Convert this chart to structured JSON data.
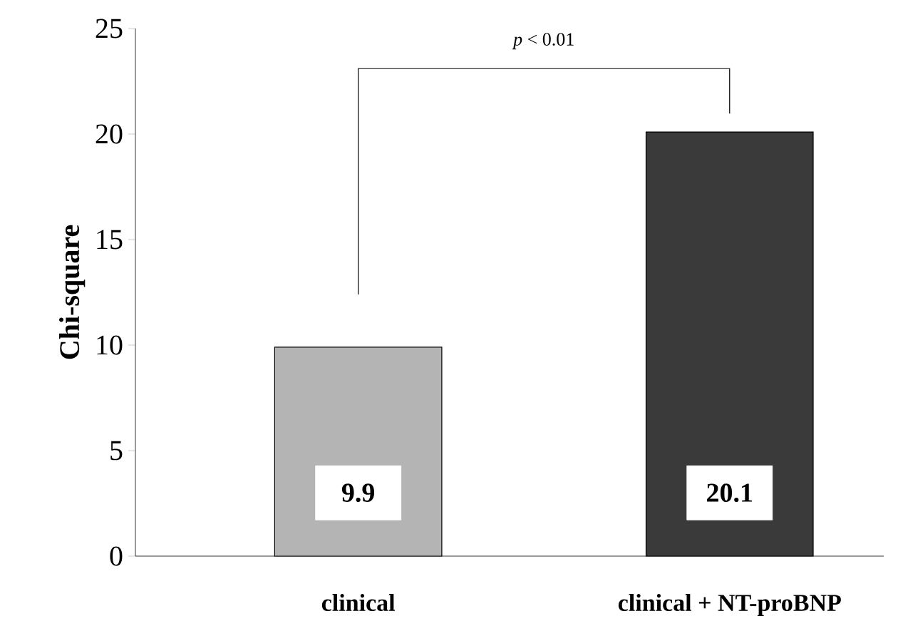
{
  "chart_data": {
    "type": "bar",
    "ylabel": "Chi-square",
    "categories": [
      "clinical",
      "clinical + NT-proBNP"
    ],
    "values": [
      9.9,
      20.1
    ],
    "colors": [
      "#b4b4b4",
      "#3a3a3a"
    ],
    "ylim": [
      0,
      25
    ],
    "yticks": [
      0,
      5,
      10,
      15,
      20,
      25
    ],
    "data_labels": true,
    "grid": false,
    "annotations": [
      "*p* < 0.01"
    ]
  }
}
